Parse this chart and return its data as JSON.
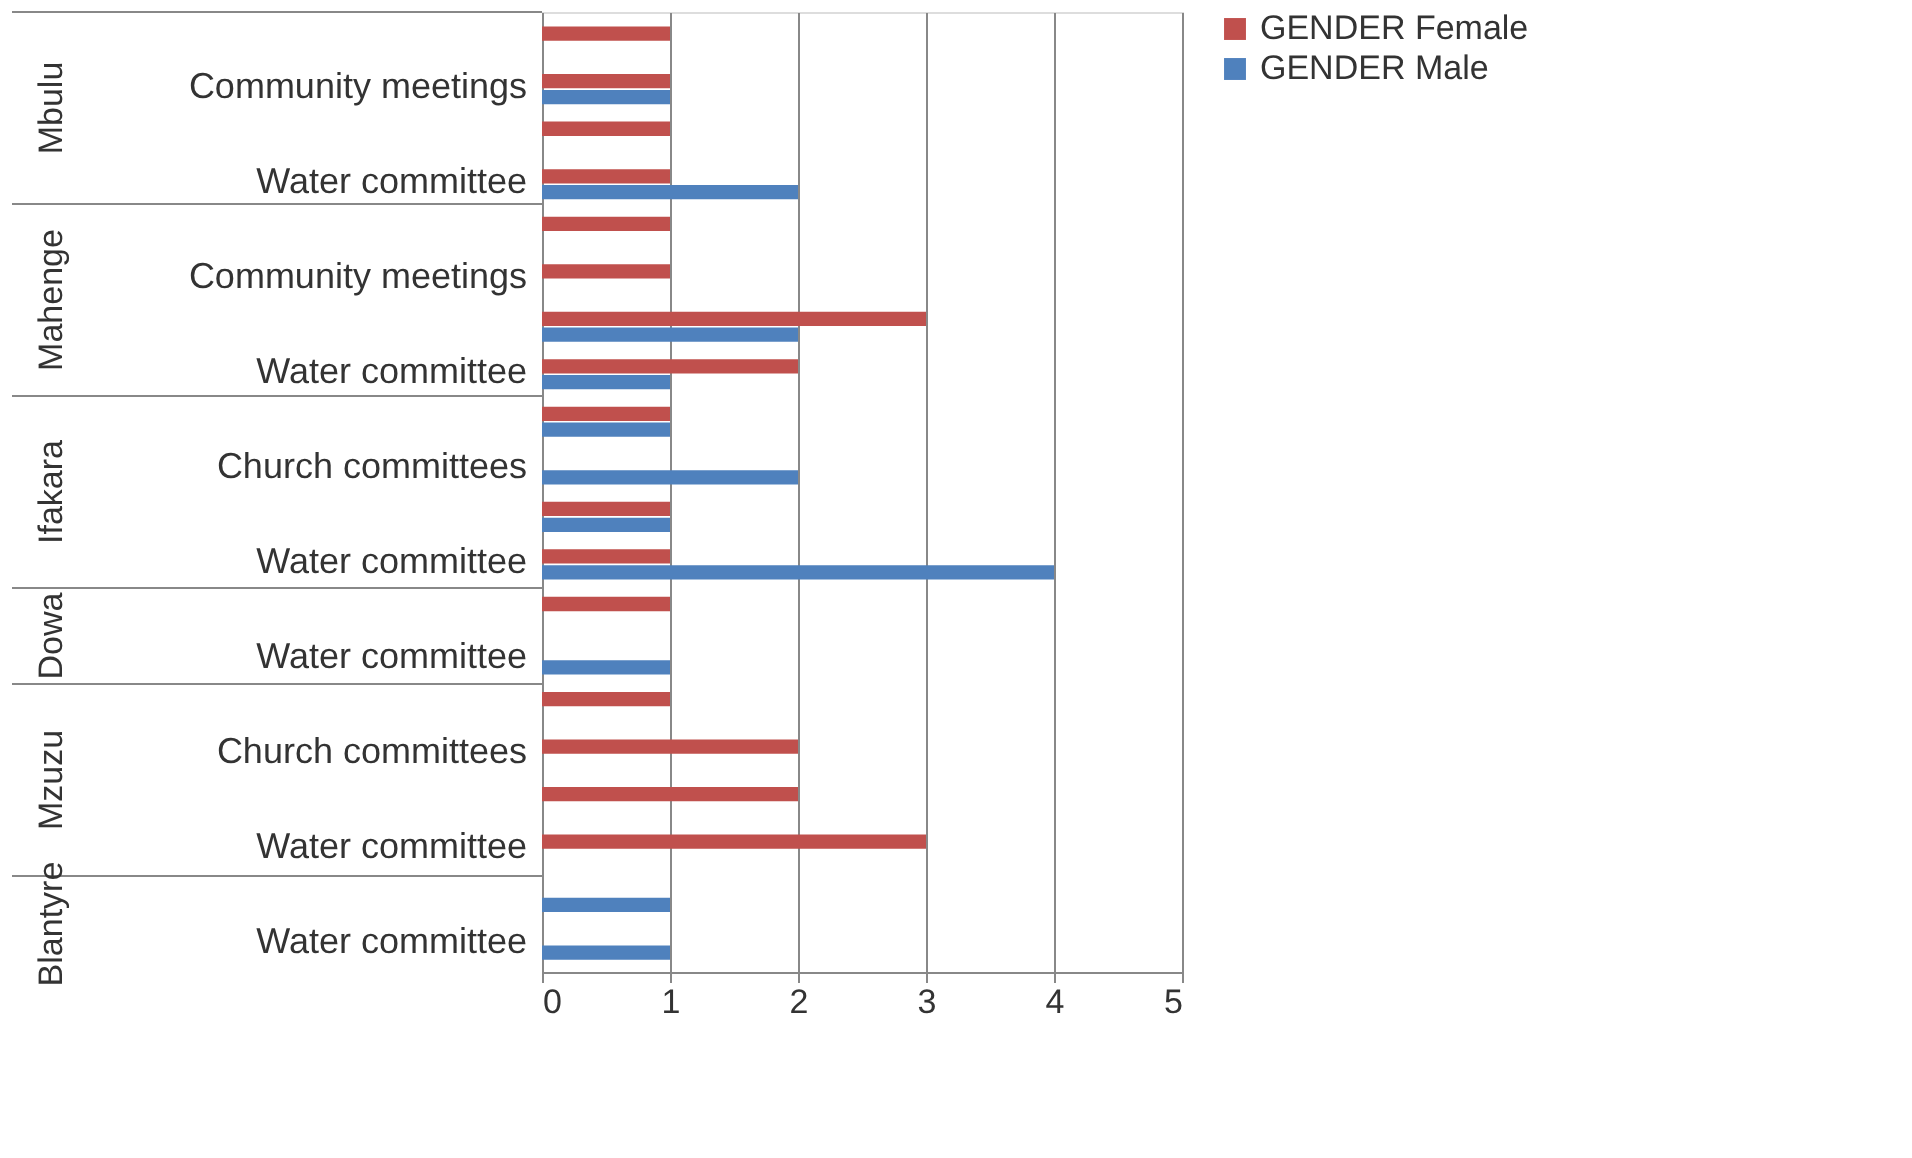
{
  "chart_data": {
    "type": "bar",
    "orientation": "horizontal",
    "categories": [
      null,
      "Community meetings",
      null,
      "Water committee",
      null,
      "Community meetings",
      null,
      "Water committee",
      null,
      "Church committees",
      null,
      "Water committee",
      null,
      "Water committee",
      null,
      "Church committees",
      null,
      "Water committee",
      null,
      "Water committee"
    ],
    "series": [
      {
        "name": "GENDER Female",
        "color": "#c0504d",
        "values": [
          1,
          1,
          1,
          1,
          1,
          1,
          3,
          2,
          1,
          null,
          1,
          1,
          1,
          null,
          1,
          2,
          2,
          3,
          null,
          null
        ]
      },
      {
        "name": "GENDER Male",
        "color": "#4f81bd",
        "values": [
          null,
          1,
          null,
          2,
          null,
          null,
          2,
          1,
          1,
          2,
          1,
          4,
          null,
          1,
          null,
          null,
          null,
          null,
          1,
          1
        ]
      }
    ],
    "annotations": [
      "Mbulu",
      "Mahenge",
      "Ifakara",
      "Dowa",
      "Mzuzu",
      "Blantyre"
    ],
    "xlim": [
      0,
      5
    ],
    "xticks": [
      0,
      1,
      2,
      3,
      4,
      5
    ],
    "grid": "x",
    "legend": "right"
  }
}
